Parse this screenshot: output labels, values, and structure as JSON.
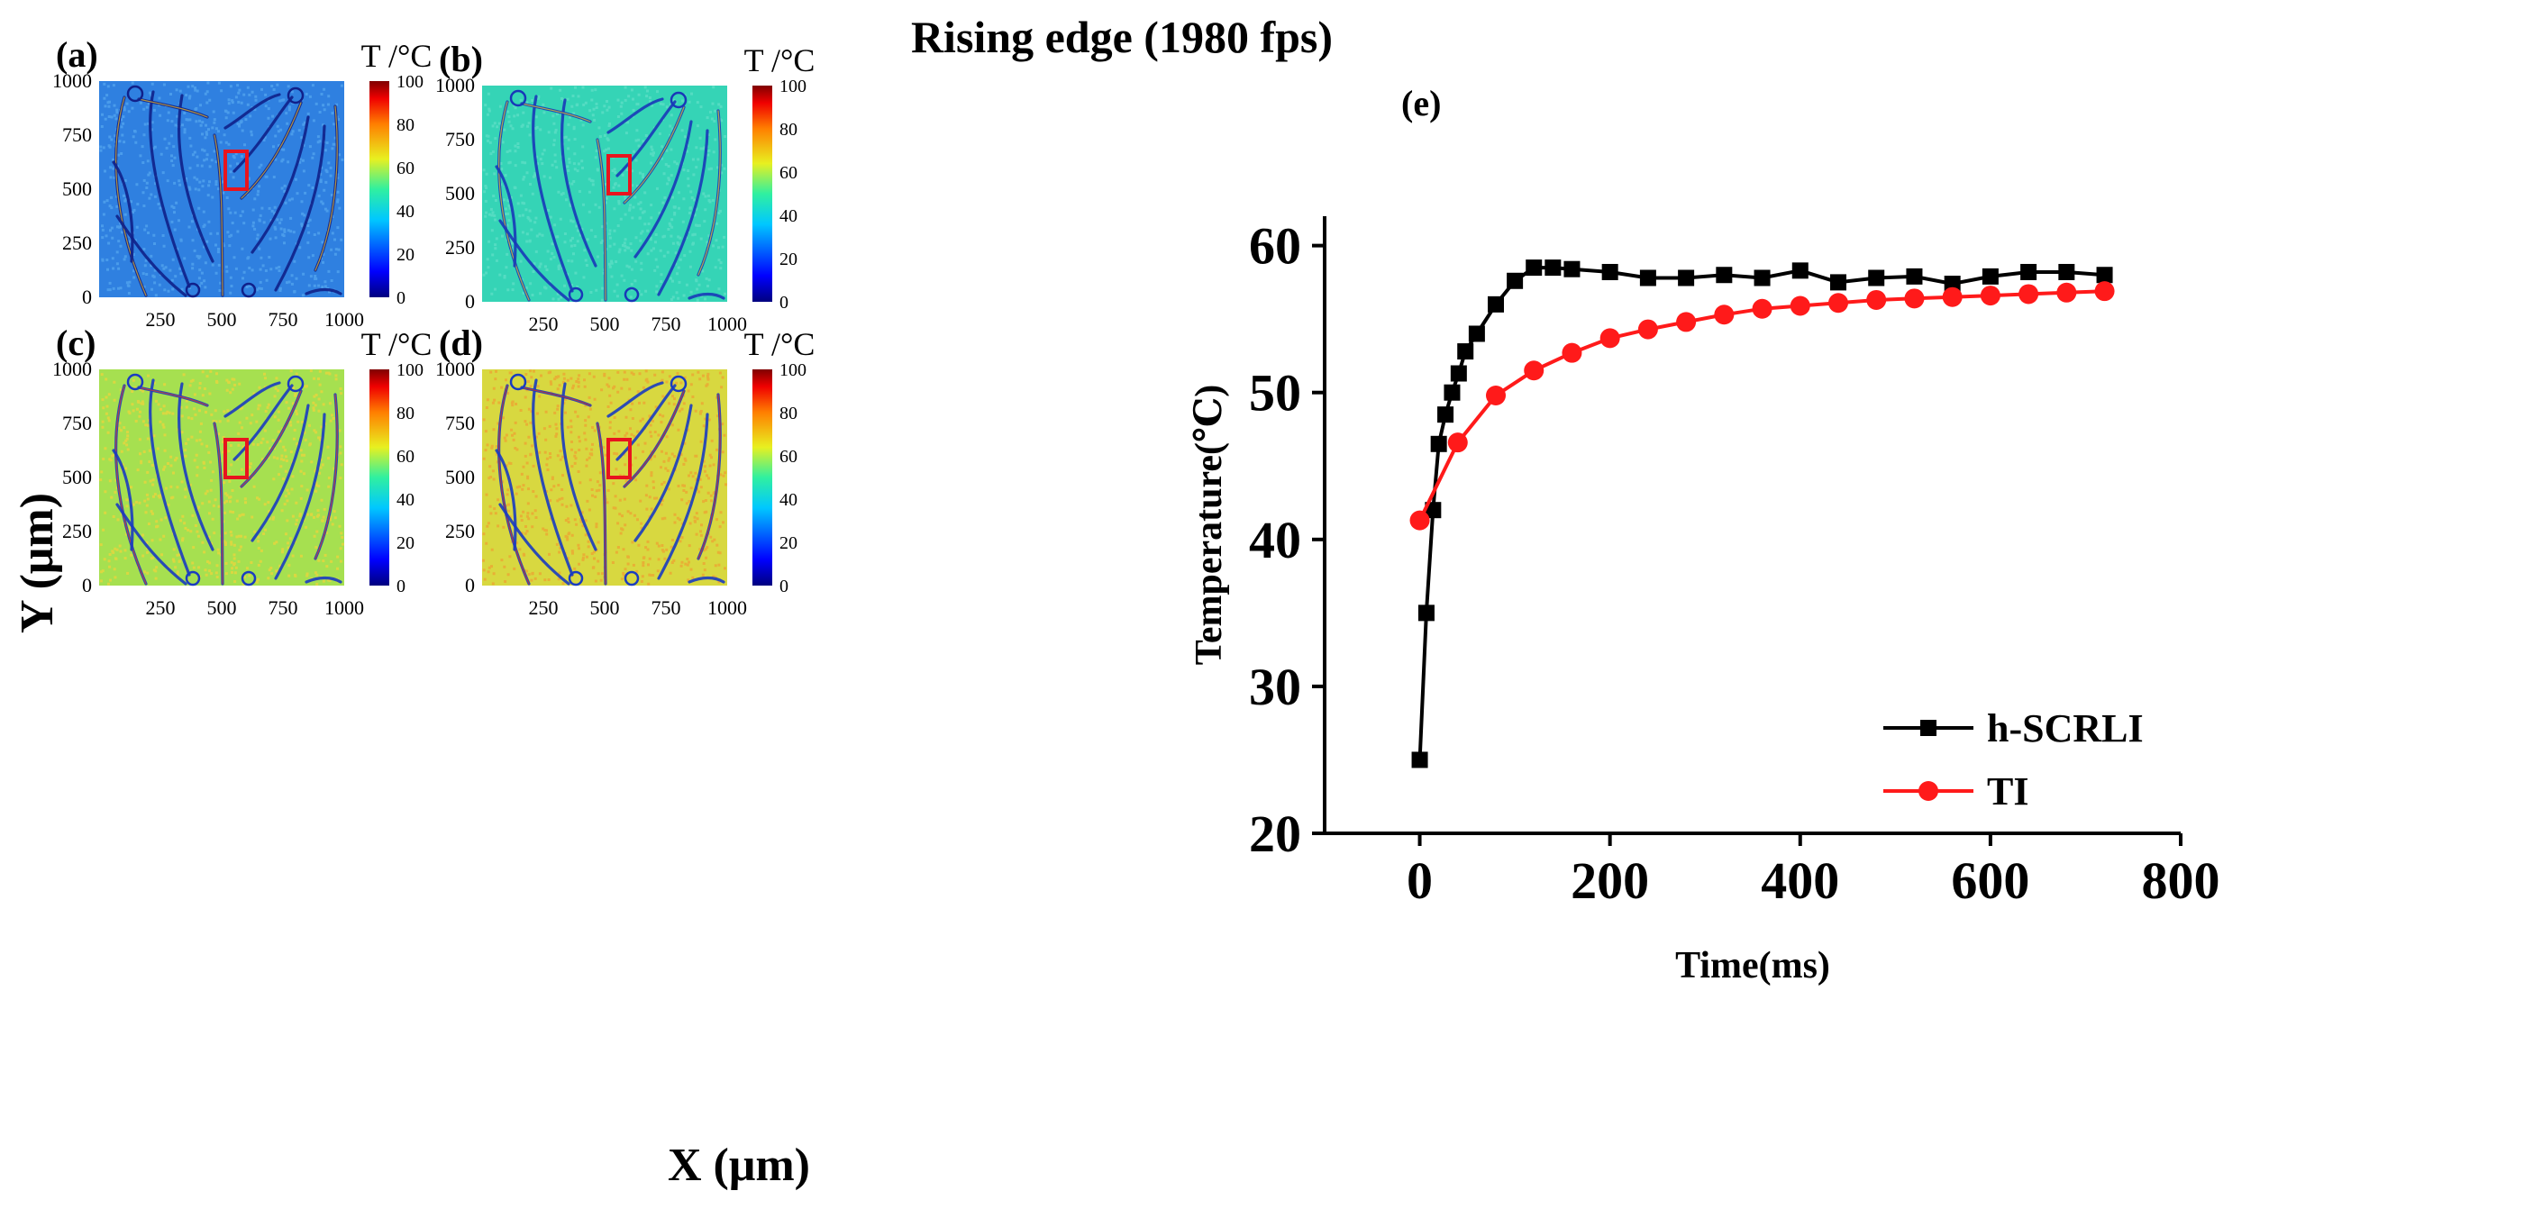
{
  "figure": {
    "title": "Rising edge (1980 fps)",
    "shared_ylabel": "Y (μm)",
    "shared_xlabel": "X (μm)"
  },
  "maps": [
    {
      "id": "a",
      "label": "(a)",
      "colorbar_title": "T /°C",
      "base_color": "#2f80e0",
      "noise_color": "#55a8f0",
      "vein_color": "#10208a",
      "hi_color": "#f4c020"
    },
    {
      "id": "b",
      "label": "(b)",
      "colorbar_title": "T /°C",
      "base_color": "#35d4b6",
      "noise_color": "#62e0c8",
      "vein_color": "#1838b8",
      "hi_color": "#f0d020"
    },
    {
      "id": "c",
      "label": "(c)",
      "colorbar_title": "T /°C",
      "base_color": "#a6e050",
      "noise_color": "#f2d33a",
      "vein_color": "#1a3cc0",
      "hi_color": "#e84020"
    },
    {
      "id": "d",
      "label": "(d)",
      "colorbar_title": "T /°C",
      "base_color": "#d8d840",
      "noise_color": "#f0a030",
      "vein_color": "#1a3cc0",
      "hi_color": "#e03018"
    }
  ],
  "map_axes": {
    "x_ticks": [
      "250",
      "500",
      "750",
      "1000"
    ],
    "y_ticks": [
      "0",
      "250",
      "500",
      "750",
      "1000"
    ],
    "colorbar_ticks": [
      "0",
      "20",
      "40",
      "60",
      "80",
      "100"
    ],
    "highlight_color": "#e8141e"
  },
  "chart_data": {
    "type": "line",
    "panel_label": "(e)",
    "title": "",
    "xlabel": "Time(ms)",
    "ylabel": "Temperature(℃)",
    "xlim": [
      -100,
      800
    ],
    "ylim": [
      20,
      62
    ],
    "xticks": [
      0,
      200,
      400,
      600,
      800
    ],
    "yticks": [
      20,
      30,
      40,
      50,
      60
    ],
    "legend_position": "lower-right",
    "series": [
      {
        "name": "h-SCRLI",
        "color": "#000000",
        "marker": "square",
        "x": [
          0,
          7,
          14,
          20,
          27,
          34,
          41,
          48,
          60,
          80,
          100,
          120,
          140,
          160,
          200,
          240,
          280,
          320,
          360,
          400,
          440,
          480,
          520,
          560,
          600,
          640,
          680,
          720
        ],
        "y": [
          25,
          35,
          42,
          46.5,
          48.5,
          50,
          51.3,
          52.8,
          54,
          56,
          57.6,
          58.5,
          58.5,
          58.4,
          58.2,
          57.8,
          57.8,
          58,
          57.8,
          58.3,
          57.5,
          57.8,
          57.9,
          57.4,
          57.9,
          58.2,
          58.2,
          58
        ]
      },
      {
        "name": "TI",
        "color": "#ff1a1a",
        "marker": "circle",
        "x": [
          0,
          40,
          80,
          120,
          160,
          200,
          240,
          280,
          320,
          360,
          400,
          440,
          480,
          520,
          560,
          600,
          640,
          680,
          720
        ],
        "y": [
          41.3,
          46.6,
          49.8,
          51.5,
          52.7,
          53.7,
          54.3,
          54.8,
          55.3,
          55.7,
          55.9,
          56.1,
          56.3,
          56.4,
          56.5,
          56.6,
          56.7,
          56.8,
          56.9
        ]
      }
    ]
  }
}
